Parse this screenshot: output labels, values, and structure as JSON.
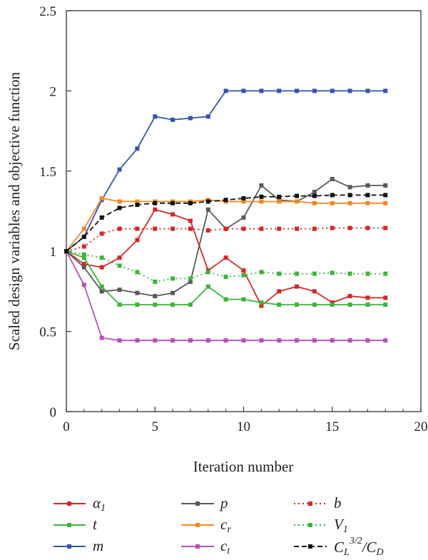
{
  "chart_data": {
    "type": "line",
    "xlabel": "Iteration number",
    "ylabel": "Scaled design variables and objective function",
    "xlim": [
      0,
      20
    ],
    "ylim": [
      0,
      2.5
    ],
    "xticks": [
      "0",
      "5",
      "10",
      "15",
      "20"
    ],
    "yticks": [
      "0",
      "0.5",
      "1",
      "1.5",
      "2",
      "2.5"
    ],
    "grid": false,
    "legend_position": "bottom",
    "series": [
      {
        "name": "α1",
        "color": "#d62728",
        "dash": "solid",
        "x": [
          0,
          1,
          2,
          3,
          4,
          5,
          6,
          7,
          8,
          9,
          10,
          11,
          12,
          13,
          14,
          15,
          16,
          17,
          18
        ],
        "values": [
          1,
          0.92,
          0.9,
          0.96,
          1.07,
          1.26,
          1.23,
          1.19,
          0.88,
          0.96,
          0.88,
          0.66,
          0.75,
          0.78,
          0.75,
          0.68,
          0.72,
          0.71,
          0.71
        ]
      },
      {
        "name": "t",
        "color": "#3bb53b",
        "dash": "solid",
        "x": [
          0,
          1,
          2,
          3,
          4,
          5,
          6,
          7,
          8,
          9,
          10,
          11,
          12,
          13,
          14,
          15,
          16,
          17,
          18
        ],
        "values": [
          1,
          0.96,
          0.78,
          0.667,
          0.667,
          0.667,
          0.667,
          0.667,
          0.78,
          0.7,
          0.7,
          0.68,
          0.667,
          0.667,
          0.667,
          0.667,
          0.667,
          0.667,
          0.667
        ]
      },
      {
        "name": "m",
        "color": "#3953b0",
        "dash": "solid",
        "x": [
          0,
          1,
          2,
          3,
          4,
          5,
          6,
          7,
          8,
          9,
          10,
          11,
          12,
          13,
          14,
          15,
          16,
          17,
          18
        ],
        "values": [
          1,
          1.09,
          1.32,
          1.51,
          1.64,
          1.84,
          1.82,
          1.83,
          1.84,
          2.0,
          2.0,
          2.0,
          2.0,
          2.0,
          2.0,
          2.0,
          2.0,
          2.0,
          2.0
        ]
      },
      {
        "name": "p",
        "color": "#5a5a5a",
        "dash": "solid",
        "x": [
          0,
          1,
          2,
          3,
          4,
          5,
          6,
          7,
          8,
          9,
          10,
          11,
          12,
          13,
          14,
          15,
          16,
          17,
          18
        ],
        "values": [
          1,
          0.9,
          0.75,
          0.76,
          0.74,
          0.72,
          0.74,
          0.81,
          1.26,
          1.14,
          1.21,
          1.41,
          1.32,
          1.31,
          1.37,
          1.45,
          1.4,
          1.41,
          1.41
        ]
      },
      {
        "name": "c_r",
        "color": "#f4891f",
        "dash": "solid",
        "x": [
          0,
          1,
          2,
          3,
          4,
          5,
          6,
          7,
          8,
          9,
          10,
          11,
          12,
          13,
          14,
          15,
          16,
          17,
          18
        ],
        "values": [
          1,
          1.14,
          1.33,
          1.31,
          1.31,
          1.31,
          1.31,
          1.31,
          1.32,
          1.31,
          1.31,
          1.31,
          1.31,
          1.31,
          1.3,
          1.3,
          1.3,
          1.3,
          1.3
        ]
      },
      {
        "name": "c_t",
        "color": "#b84fb8",
        "dash": "solid",
        "x": [
          0,
          1,
          2,
          3,
          4,
          5,
          6,
          7,
          8,
          9,
          10,
          11,
          12,
          13,
          14,
          15,
          16,
          17,
          18
        ],
        "values": [
          1,
          0.79,
          0.46,
          0.444,
          0.444,
          0.444,
          0.444,
          0.444,
          0.444,
          0.444,
          0.444,
          0.444,
          0.444,
          0.444,
          0.444,
          0.444,
          0.444,
          0.444,
          0.444
        ]
      },
      {
        "name": "b",
        "color": "#d62728",
        "dash": "dotted",
        "x": [
          0,
          1,
          2,
          3,
          4,
          5,
          6,
          7,
          8,
          9,
          10,
          11,
          12,
          13,
          14,
          15,
          16,
          17,
          18
        ],
        "values": [
          1,
          1.03,
          1.11,
          1.14,
          1.14,
          1.14,
          1.14,
          1.14,
          1.13,
          1.14,
          1.14,
          1.14,
          1.14,
          1.14,
          1.14,
          1.145,
          1.145,
          1.145,
          1.145
        ]
      },
      {
        "name": "V1",
        "color": "#3bb53b",
        "dash": "dotted",
        "x": [
          0,
          1,
          2,
          3,
          4,
          5,
          6,
          7,
          8,
          9,
          10,
          11,
          12,
          13,
          14,
          15,
          16,
          17,
          18
        ],
        "values": [
          1,
          0.98,
          0.96,
          0.91,
          0.87,
          0.81,
          0.83,
          0.83,
          0.87,
          0.84,
          0.85,
          0.87,
          0.86,
          0.86,
          0.86,
          0.865,
          0.86,
          0.86,
          0.86
        ]
      },
      {
        "name": "C_L^{3/2}/C_D",
        "color": "#111111",
        "dash": "dashed",
        "x": [
          0,
          1,
          2,
          3,
          4,
          5,
          6,
          7,
          8,
          9,
          10,
          11,
          12,
          13,
          14,
          15,
          16,
          17,
          18
        ],
        "values": [
          1,
          1.09,
          1.21,
          1.27,
          1.29,
          1.3,
          1.3,
          1.3,
          1.31,
          1.32,
          1.33,
          1.34,
          1.34,
          1.345,
          1.345,
          1.35,
          1.35,
          1.35,
          1.35
        ]
      }
    ]
  },
  "legend": {
    "col1": [
      "α",
      "t",
      "m"
    ],
    "col1_sub": [
      "1",
      "",
      ""
    ],
    "col2": [
      "p",
      "c",
      "c"
    ],
    "col2_sub": [
      "",
      "r",
      "t"
    ],
    "col3_b": "b",
    "col3_v": "V",
    "col3_v_sub": "1",
    "col3_obj_a": "C",
    "col3_obj_a_sub": "L",
    "col3_obj_sup": "3/2",
    "col3_obj_b": "/C",
    "col3_obj_b_sub": "D"
  }
}
